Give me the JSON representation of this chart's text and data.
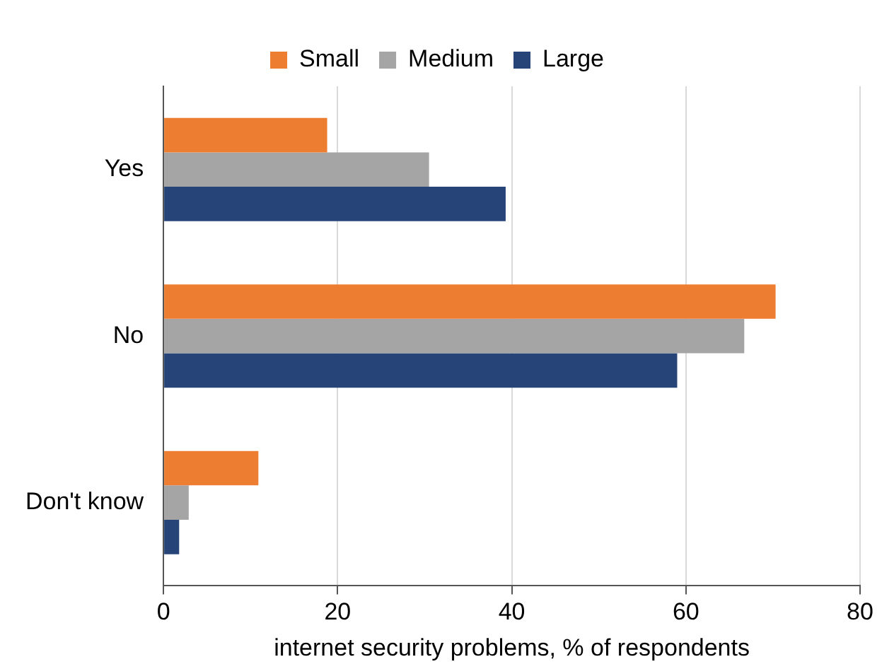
{
  "chart_data": {
    "type": "bar",
    "orientation": "horizontal",
    "categories": [
      "Yes",
      "No",
      "Don't know"
    ],
    "series": [
      {
        "name": "Small",
        "color": "#ed7d31",
        "values": [
          18.8,
          70.3,
          10.9
        ]
      },
      {
        "name": "Medium",
        "color": "#a5a5a5",
        "values": [
          30.5,
          66.7,
          2.9
        ]
      },
      {
        "name": "Large",
        "color": "#264478",
        "values": [
          39.3,
          59.0,
          1.8
        ]
      }
    ],
    "xlabel": "internet security problems, % of respondents",
    "xlim": [
      0,
      80
    ],
    "xticks": [
      0,
      20,
      40,
      60,
      80
    ],
    "grid": "x",
    "legend": "top"
  }
}
